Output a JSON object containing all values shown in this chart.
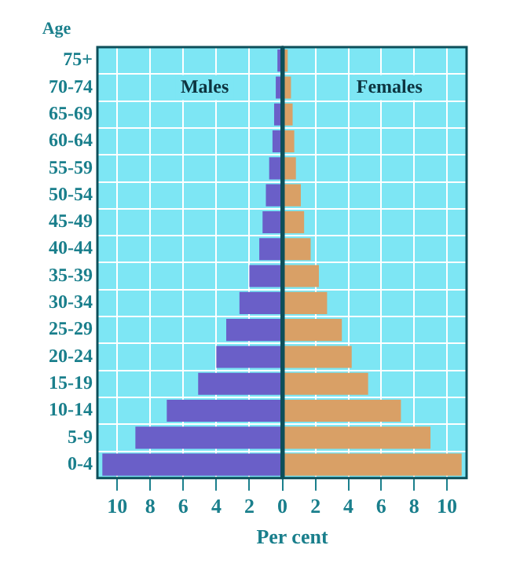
{
  "chart_data": [
    {
      "type": "bar",
      "orientation": "horizontal",
      "xlabel": "Per cent",
      "ylabel": "Age",
      "categories": [
        "75+",
        "70-74",
        "65-69",
        "60-64",
        "55-59",
        "50-54",
        "45-49",
        "40-44",
        "35-39",
        "30-34",
        "25-29",
        "20-24",
        "15-19",
        "10-14",
        "5-9",
        "0-4"
      ],
      "series": [
        {
          "name": "Males",
          "color": "#6a5fc8",
          "values": [
            0.3,
            0.4,
            0.5,
            0.6,
            0.8,
            1.0,
            1.2,
            1.4,
            2.0,
            2.6,
            3.4,
            4.0,
            5.1,
            7.0,
            8.9,
            10.9
          ]
        }
      ],
      "xlim": [
        11.2,
        0
      ],
      "xticks": [
        10,
        8,
        6,
        4,
        2,
        0
      ],
      "grid": true,
      "legend": false
    },
    {
      "type": "bar",
      "orientation": "horizontal",
      "categories": [
        null,
        null,
        null,
        null,
        null,
        null,
        null,
        null,
        null,
        null,
        null,
        null,
        null,
        null,
        null,
        null
      ],
      "series": [
        {
          "name": "Females",
          "color": "#d9a066",
          "values": [
            0.3,
            0.5,
            0.6,
            0.7,
            0.8,
            1.1,
            1.3,
            1.7,
            2.2,
            2.7,
            3.6,
            4.2,
            5.2,
            7.2,
            9.0,
            10.9
          ]
        }
      ],
      "xlim": [
        0,
        11.2
      ],
      "xticks": [
        {
          "value": 0,
          "label": null
        },
        2,
        4,
        6,
        8,
        10
      ],
      "grid": true,
      "legend": false,
      "tick_labels": "x"
    }
  ]
}
